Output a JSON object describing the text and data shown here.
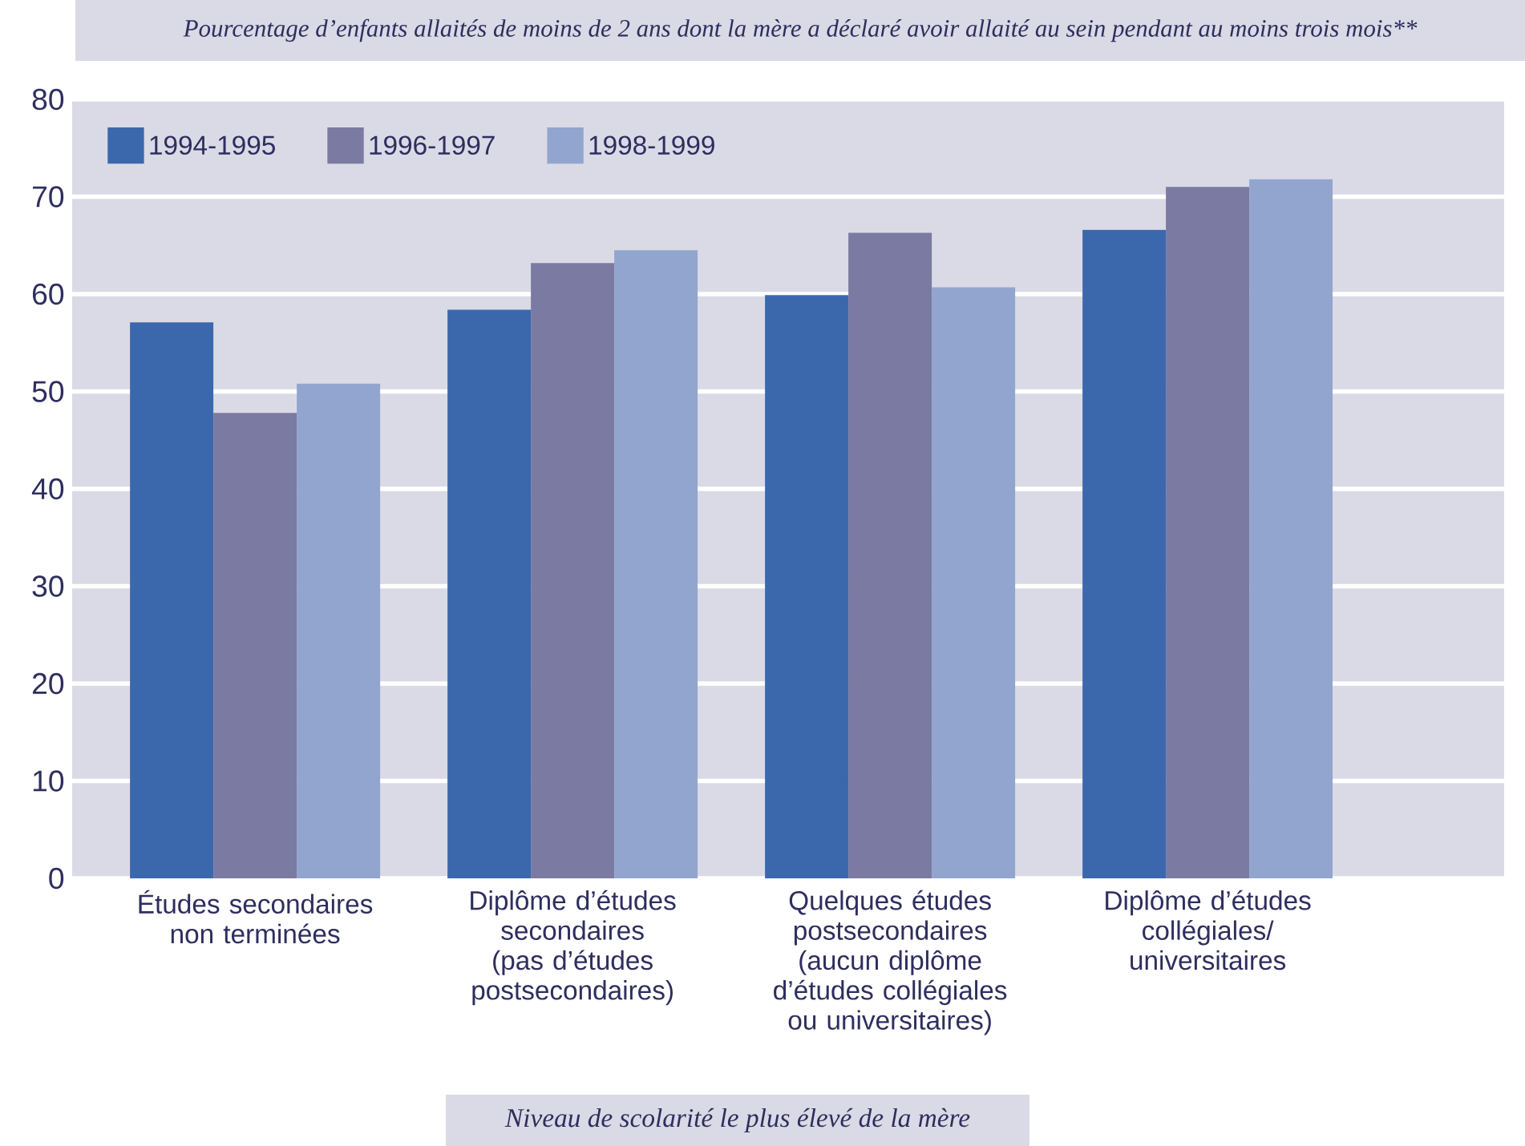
{
  "chart_data": {
    "type": "bar",
    "title": "Pourcentage d’enfants allaités de moins de 2 ans dont la mère a déclaré avoir allaité au sein pendant au moins trois mois**",
    "xlabel": "Niveau de scolarité le plus élevé de la mère",
    "categories": [
      "Études secondaires non terminées",
      "Diplôme d’études secondaires (pas d’études postsecondaires)",
      "Quelques études postsecondaires (aucun diplôme d’études collégiales ou universitaires)",
      "Diplôme d’études collégiales/ universitaires"
    ],
    "series": [
      {
        "name": "1994-1995",
        "color": "#3b68ad",
        "values": [
          57.1,
          58.4,
          59.9,
          66.6
        ]
      },
      {
        "name": "1996-1997",
        "color": "#7a7aa2",
        "values": [
          47.8,
          63.2,
          66.3,
          71.0
        ]
      },
      {
        "name": "1998-1999",
        "color": "#92a5cf",
        "values": [
          50.8,
          64.5,
          60.7,
          71.8
        ]
      }
    ],
    "ylim": [
      0,
      80
    ],
    "yticks": [
      0,
      10,
      20,
      30,
      40,
      50,
      60,
      70,
      80
    ],
    "grid": "y",
    "legend": "top left"
  }
}
